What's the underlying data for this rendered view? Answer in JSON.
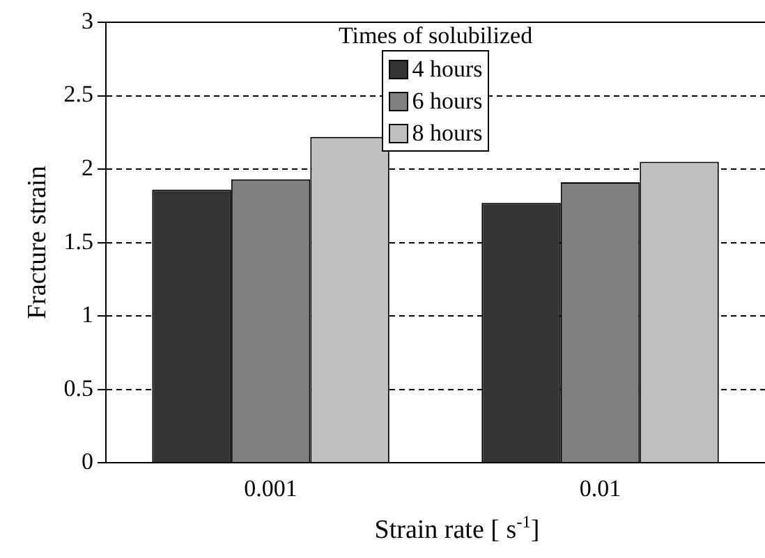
{
  "chart_data": {
    "type": "bar",
    "xlabel": "Strain rate [ s$^{-1}$]",
    "ylabel": "Fracture strain",
    "legend_title": "Times of solubilized",
    "categories": [
      "0.001",
      "0.01"
    ],
    "series": [
      {
        "name": "4 hours",
        "color": "#333333",
        "values": [
          1.86,
          1.77
        ]
      },
      {
        "name": "6 hours",
        "color": "#808080",
        "values": [
          1.93,
          1.91
        ]
      },
      {
        "name": "8 hours",
        "color": "#c0c0c0",
        "values": [
          2.22,
          2.05
        ]
      }
    ],
    "ylim": [
      0,
      3
    ],
    "yticks": [
      0,
      0.5,
      1,
      1.5,
      2,
      2.5,
      3
    ],
    "grid": "y",
    "legend": "top",
    "line_style": "dashed"
  }
}
